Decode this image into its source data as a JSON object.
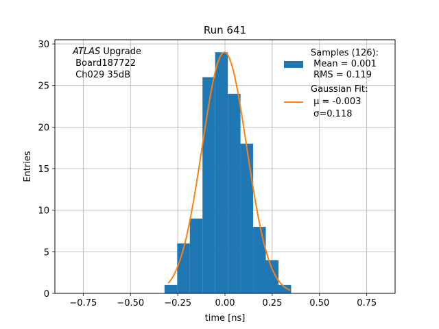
{
  "chart_data": {
    "type": "bar",
    "title": "Run 641",
    "xlabel": "time [ns]",
    "ylabel": "Entries",
    "xlim": [
      -0.9,
      0.9
    ],
    "ylim": [
      0,
      30.5
    ],
    "grid": true,
    "xticks": [
      -0.75,
      -0.5,
      -0.25,
      0.0,
      0.25,
      0.5,
      0.75
    ],
    "xtick_labels": [
      "−0.75",
      "−0.50",
      "−0.25",
      "0.00",
      "0.25",
      "0.50",
      "0.75"
    ],
    "yticks": [
      0,
      5,
      10,
      15,
      20,
      25,
      30
    ],
    "ytick_labels": [
      "0",
      "5",
      "10",
      "15",
      "20",
      "25",
      "30"
    ],
    "histogram": {
      "name": "Samples (126):",
      "color": "#1f77b4",
      "bin_edges": [
        -0.32,
        -0.253,
        -0.186,
        -0.119,
        -0.052,
        0.015,
        0.082,
        0.149,
        0.216,
        0.283,
        0.35
      ],
      "counts": [
        1,
        6,
        9,
        26,
        29,
        24,
        18,
        8,
        4,
        1
      ]
    },
    "fit": {
      "name": "Gaussian Fit:",
      "color": "#ff7f0e",
      "mu": -0.003,
      "sigma": 0.118,
      "amplitude": 29,
      "x_range": [
        -0.3,
        0.345
      ]
    },
    "legend": {
      "placement": "top-right",
      "hist_lines": [
        "Samples (126):",
        " Mean = 0.001",
        " RMS = 0.119"
      ],
      "fit_lines": [
        "Gaussian Fit:",
        " μ = -0.003",
        " σ=0.118"
      ]
    },
    "annotation": {
      "placement": "top-left",
      "line1_italic": "ATLAS",
      "line1_rest": " Upgrade",
      "line2": " Board187722",
      "line3": " Ch029 35dB"
    }
  }
}
